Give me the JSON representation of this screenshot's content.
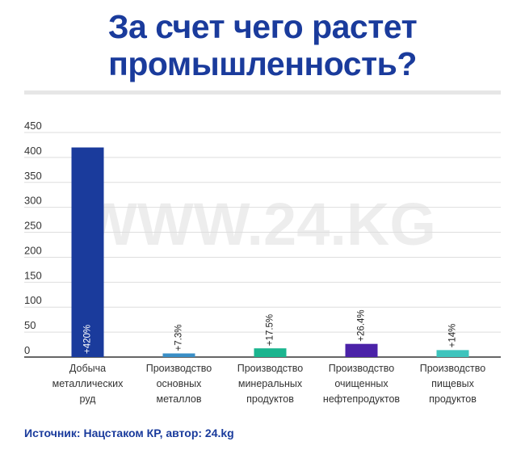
{
  "header": {
    "title_line1": "За счет чего растет",
    "title_line2": "промышленность?"
  },
  "watermark": "WWW.24.KG",
  "source": "Источник: Нацстаком КР, автор: 24.kg",
  "chart_data": {
    "type": "bar",
    "title": "За счет чего растет промышленность?",
    "categories": [
      [
        "Добыча",
        "металлических",
        "руд"
      ],
      [
        "Производство",
        "основных",
        "металлов"
      ],
      [
        "Производство",
        "минеральных",
        "продуктов"
      ],
      [
        "Производство",
        "очищенных",
        "нефтепродуктов"
      ],
      [
        "Производство",
        "пищевых",
        "продуктов"
      ]
    ],
    "values": [
      420,
      7.3,
      17.5,
      26.4,
      14
    ],
    "data_labels": [
      "+420%",
      "+7.3%",
      "+17.5%",
      "+26.4%",
      "+14%"
    ],
    "colors": [
      "#1a3b9c",
      "#3a8fc7",
      "#1bb58f",
      "#4b22a8",
      "#3ec4bd"
    ],
    "yticks": [
      0,
      50,
      100,
      150,
      200,
      250,
      300,
      350,
      400,
      450
    ],
    "ylim": [
      0,
      450
    ],
    "grid": true,
    "xlabel": "",
    "ylabel": ""
  }
}
